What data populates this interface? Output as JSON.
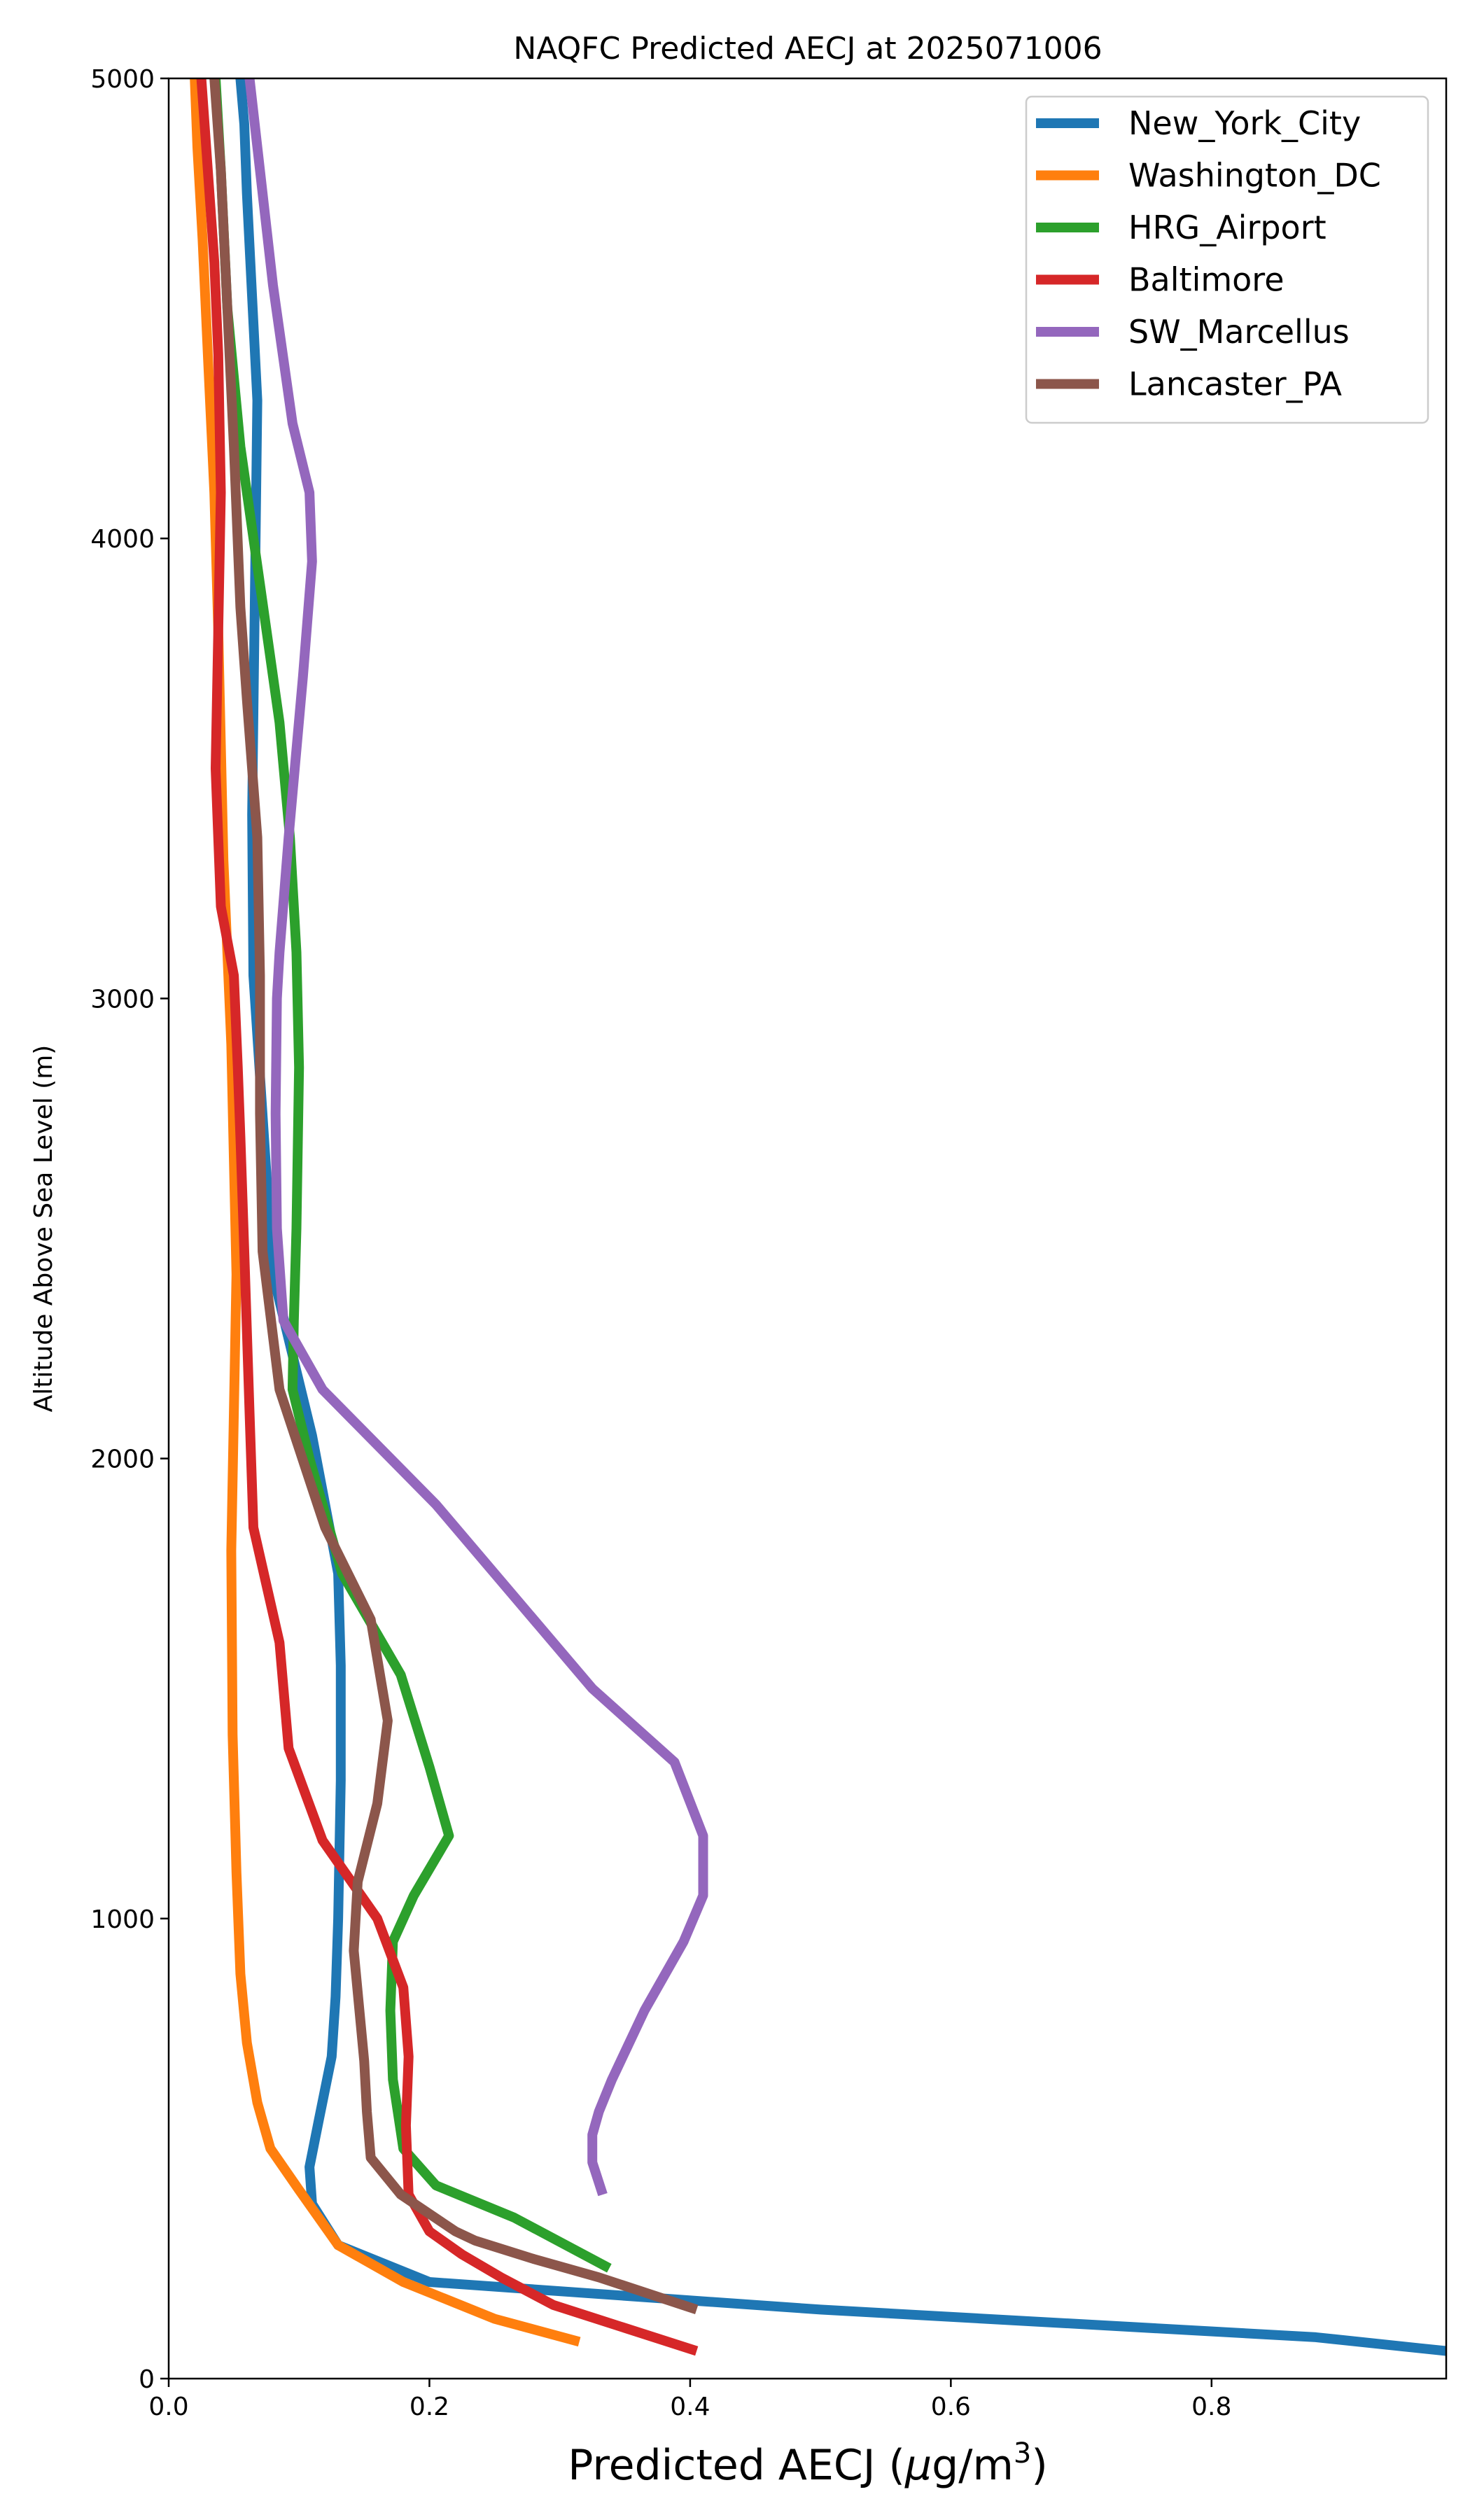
{
  "chart_data": {
    "type": "line",
    "title": "NAQFC Predicted AECJ at 2025071006",
    "xlabel_prefix": "Predicted AECJ (",
    "xlabel_mu": "μ",
    "xlabel_unit": "g/m",
    "xlabel_sup": "3",
    "xlabel_suffix": ")",
    "ylabel": "Altitude Above Sea Level (m)",
    "xlim": [
      0,
      0.98
    ],
    "ylim": [
      0,
      5000
    ],
    "xticks": [
      {
        "value": 0.0,
        "label": "0.0"
      },
      {
        "value": 0.2,
        "label": "0.2"
      },
      {
        "value": 0.4,
        "label": "0.4"
      },
      {
        "value": 0.6,
        "label": "0.6"
      },
      {
        "value": 0.8,
        "label": "0.8"
      }
    ],
    "yticks": [
      {
        "value": 0,
        "label": "0"
      },
      {
        "value": 1000,
        "label": "1000"
      },
      {
        "value": 2000,
        "label": "2000"
      },
      {
        "value": 3000,
        "label": "3000"
      },
      {
        "value": 4000,
        "label": "4000"
      },
      {
        "value": 5000,
        "label": "5000"
      }
    ],
    "legend_position": "top-right",
    "grid": false,
    "series": [
      {
        "name": "New_York_City",
        "color": "#1f77b4",
        "x": [
          0.98,
          0.88,
          0.5,
          0.2,
          0.13,
          0.11,
          0.108,
          0.115,
          0.125,
          0.128,
          0.13,
          0.132,
          0.132,
          0.13,
          0.11,
          0.08,
          0.065,
          0.064,
          0.066,
          0.068,
          0.06,
          0.058,
          0.055
        ],
        "y": [
          60,
          90,
          150,
          210,
          290,
          380,
          460,
          560,
          700,
          830,
          1000,
          1300,
          1550,
          1750,
          2050,
          2400,
          3050,
          3400,
          3850,
          4300,
          4750,
          4900,
          5000
        ]
      },
      {
        "name": "Washington_DC",
        "color": "#ff7f0e",
        "x": [
          0.315,
          0.25,
          0.18,
          0.13,
          0.1,
          0.078,
          0.068,
          0.06,
          0.055,
          0.052,
          0.049,
          0.048,
          0.05,
          0.052,
          0.048,
          0.042,
          0.038,
          0.035,
          0.03,
          0.026,
          0.022,
          0.02
        ],
        "y": [
          80,
          130,
          210,
          290,
          410,
          500,
          600,
          730,
          880,
          1100,
          1400,
          1800,
          2100,
          2400,
          2900,
          3300,
          3800,
          4100,
          4400,
          4650,
          4850,
          5000
        ]
      },
      {
        "name": "HRG_Airport",
        "color": "#2ca02c",
        "x": [
          0.338,
          0.265,
          0.205,
          0.18,
          0.172,
          0.17,
          0.172,
          0.188,
          0.215,
          0.2,
          0.178,
          0.133,
          0.108,
          0.095,
          0.096,
          0.098,
          0.1,
          0.098,
          0.093,
          0.085,
          0.07,
          0.055,
          0.045,
          0.04,
          0.036
        ],
        "y": [
          240,
          350,
          420,
          500,
          650,
          800,
          950,
          1050,
          1180,
          1330,
          1530,
          1750,
          2000,
          2150,
          2300,
          2500,
          2850,
          3100,
          3350,
          3600,
          3900,
          4200,
          4500,
          4800,
          5000
        ]
      },
      {
        "name": "Baltimore",
        "color": "#d62728",
        "x": [
          0.405,
          0.35,
          0.295,
          0.255,
          0.225,
          0.2,
          0.184,
          0.182,
          0.184,
          0.18,
          0.16,
          0.118,
          0.092,
          0.085,
          0.065,
          0.062,
          0.058,
          0.055,
          0.053,
          0.05,
          0.04,
          0.036,
          0.038,
          0.04,
          0.038,
          0.035,
          0.03,
          0.025
        ],
        "y": [
          60,
          110,
          160,
          220,
          270,
          320,
          400,
          550,
          700,
          850,
          1000,
          1170,
          1370,
          1600,
          1850,
          2100,
          2450,
          2700,
          2850,
          3050,
          3200,
          3500,
          3800,
          4100,
          4400,
          4600,
          4800,
          5000
        ]
      },
      {
        "name": "SW_Marcellus",
        "color": "#9467bd",
        "x": [
          0.333,
          0.325,
          0.325,
          0.33,
          0.34,
          0.365,
          0.395,
          0.41,
          0.41,
          0.388,
          0.325,
          0.205,
          0.118,
          0.088,
          0.083,
          0.082,
          0.083,
          0.085,
          0.092,
          0.103,
          0.11,
          0.108,
          0.095,
          0.08,
          0.07,
          0.062
        ],
        "y": [
          400,
          470,
          530,
          580,
          650,
          800,
          950,
          1050,
          1180,
          1340,
          1500,
          1900,
          2150,
          2300,
          2500,
          2750,
          3000,
          3100,
          3350,
          3700,
          3950,
          4100,
          4250,
          4550,
          4800,
          5000
        ]
      },
      {
        "name": "Lancaster_PA",
        "color": "#8c564b",
        "x": [
          0.405,
          0.33,
          0.28,
          0.235,
          0.22,
          0.178,
          0.155,
          0.152,
          0.15,
          0.142,
          0.145,
          0.16,
          0.168,
          0.155,
          0.12,
          0.085,
          0.072,
          0.07,
          0.07,
          0.068,
          0.06,
          0.055,
          0.05,
          0.045,
          0.04,
          0.035
        ],
        "y": [
          150,
          220,
          260,
          300,
          320,
          400,
          480,
          580,
          690,
          930,
          1080,
          1250,
          1430,
          1650,
          1850,
          2150,
          2450,
          2750,
          3050,
          3350,
          3650,
          3850,
          4200,
          4500,
          4800,
          5000
        ]
      }
    ]
  }
}
